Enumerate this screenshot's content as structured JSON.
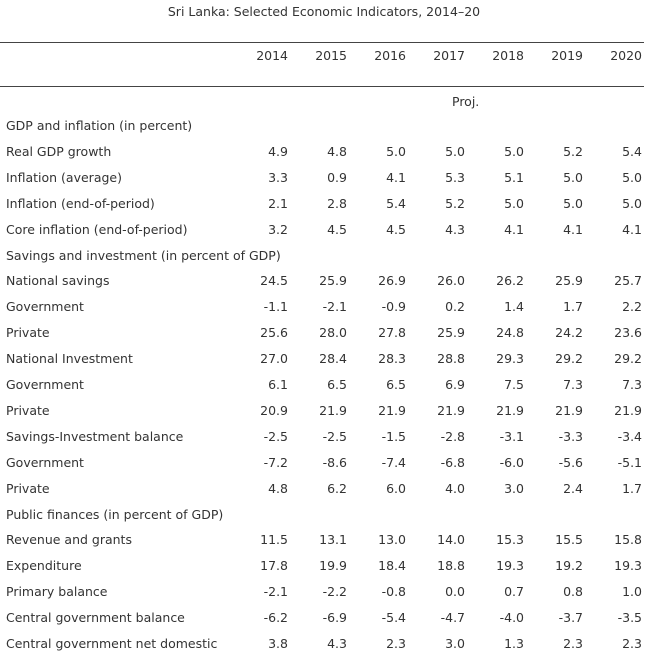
{
  "title": "Sri Lanka: Selected Economic Indicators, 2014–20",
  "years": [
    "2014",
    "2015",
    "2016",
    "2017",
    "2018",
    "2019",
    "2020"
  ],
  "proj_label": "Proj.",
  "rows": [
    {
      "label": "GDP and inflation (in percent)",
      "section": true,
      "values": []
    },
    {
      "label": "Real GDP growth",
      "values": [
        "4.9",
        "4.8",
        "5.0",
        "5.0",
        "5.0",
        "5.2",
        "5.4"
      ]
    },
    {
      "label": "Inflation (average)",
      "values": [
        "3.3",
        "0.9",
        "4.1",
        "5.3",
        "5.1",
        "5.0",
        "5.0"
      ]
    },
    {
      "label": "Inflation (end-of-period)",
      "values": [
        "2.1",
        "2.8",
        "5.4",
        "5.2",
        "5.0",
        "5.0",
        "5.0"
      ]
    },
    {
      "label": "Core inflation (end-of-period)",
      "values": [
        "3.2",
        "4.5",
        "4.5",
        "4.3",
        "4.1",
        "4.1",
        "4.1"
      ]
    },
    {
      "label": "Savings and investment (in percent of GDP)",
      "section": true,
      "values": []
    },
    {
      "label": "National savings",
      "values": [
        "24.5",
        "25.9",
        "26.9",
        "26.0",
        "26.2",
        "25.9",
        "25.7"
      ]
    },
    {
      "label": "Government",
      "values": [
        "-1.1",
        "-2.1",
        "-0.9",
        "0.2",
        "1.4",
        "1.7",
        "2.2"
      ]
    },
    {
      "label": "Private",
      "values": [
        "25.6",
        "28.0",
        "27.8",
        "25.9",
        "24.8",
        "24.2",
        "23.6"
      ]
    },
    {
      "label": "National Investment",
      "values": [
        "27.0",
        "28.4",
        "28.3",
        "28.8",
        "29.3",
        "29.2",
        "29.2"
      ]
    },
    {
      "label": "Government",
      "values": [
        "6.1",
        "6.5",
        "6.5",
        "6.9",
        "7.5",
        "7.3",
        "7.3"
      ]
    },
    {
      "label": "Private",
      "values": [
        "20.9",
        "21.9",
        "21.9",
        "21.9",
        "21.9",
        "21.9",
        "21.9"
      ]
    },
    {
      "label": "Savings-Investment balance",
      "values": [
        "-2.5",
        "-2.5",
        "-1.5",
        "-2.8",
        "-3.1",
        "-3.3",
        "-3.4"
      ]
    },
    {
      "label": "Government",
      "values": [
        "-7.2",
        "-8.6",
        "-7.4",
        "-6.8",
        "-6.0",
        "-5.6",
        "-5.1"
      ]
    },
    {
      "label": "Private",
      "values": [
        "4.8",
        "6.2",
        "6.0",
        "4.0",
        "3.0",
        "2.4",
        "1.7"
      ]
    },
    {
      "label": "Public finances (in percent of GDP)",
      "section": true,
      "values": []
    },
    {
      "label": "Revenue and grants",
      "values": [
        "11.5",
        "13.1",
        "13.0",
        "14.0",
        "15.3",
        "15.5",
        "15.8"
      ]
    },
    {
      "label": "Expenditure",
      "values": [
        "17.8",
        "19.9",
        "18.4",
        "18.8",
        "19.3",
        "19.2",
        "19.3"
      ]
    },
    {
      "label": "Primary balance",
      "values": [
        "-2.1",
        "-2.2",
        "-0.8",
        "0.0",
        "0.7",
        "0.8",
        "1.0"
      ]
    },
    {
      "label": "Central government balance",
      "values": [
        "-6.2",
        "-6.9",
        "-5.4",
        "-4.7",
        "-4.0",
        "-3.7",
        "-3.5"
      ]
    },
    {
      "label": "Central government net domestic",
      "values": [
        "3.8",
        "4.3",
        "2.3",
        "3.0",
        "1.3",
        "2.3",
        "2.3"
      ]
    }
  ]
}
